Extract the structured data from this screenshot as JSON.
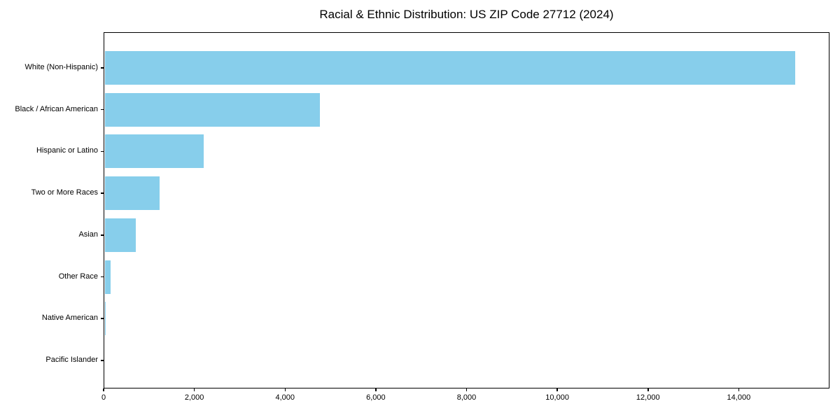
{
  "chart_data": {
    "type": "bar",
    "orientation": "horizontal",
    "title": "Racial & Ethnic Distribution: US ZIP Code 27712 (2024)",
    "categories": [
      "White (Non-Hispanic)",
      "Black / African American",
      "Hispanic or Latino",
      "Two or More Races",
      "Asian",
      "Other Race",
      "Native American",
      "Pacific Islander"
    ],
    "values": [
      15250,
      4760,
      2200,
      1240,
      715,
      150,
      40,
      0
    ],
    "xlabel": "",
    "ylabel": "",
    "xlim": [
      0,
      16000
    ],
    "x_ticks": [
      0,
      2000,
      4000,
      6000,
      8000,
      10000,
      12000,
      14000
    ],
    "x_tick_labels": [
      "0",
      "2,000",
      "4,000",
      "6,000",
      "8,000",
      "10,000",
      "12,000",
      "14,000"
    ],
    "bar_color": "#87ceeb",
    "text_color": "#000000",
    "axis_color": "#000000",
    "grid": false,
    "legend": null
  }
}
